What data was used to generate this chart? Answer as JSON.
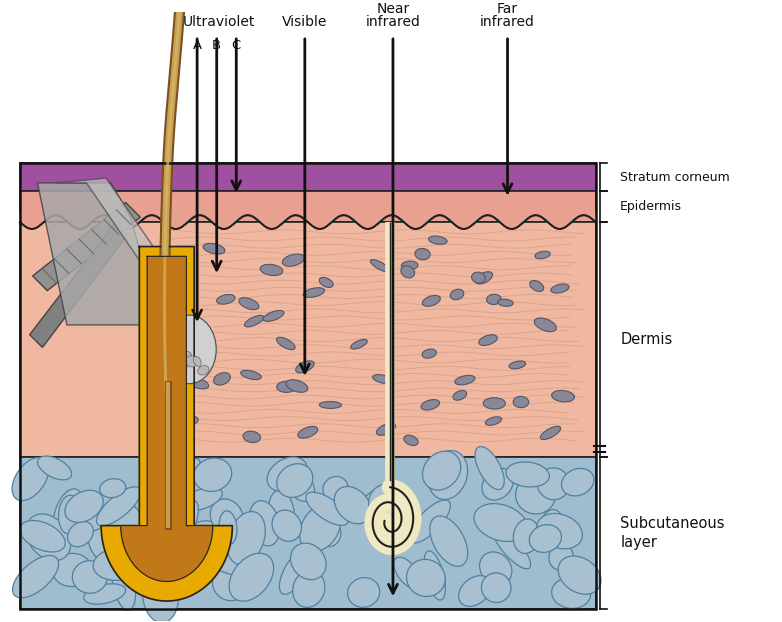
{
  "background_color": "#ffffff",
  "stratum_corneum_color": "#a050a0",
  "epidermis_color": "#e8a090",
  "dermis_color": "#f0b8a0",
  "subcutaneous_color": "#a0bdd0",
  "arrow_color": "#111111",
  "hair_outer_color": "#c8a060",
  "hair_inner_color": "#8B6030",
  "follicle_outer_color": "#e8a800",
  "follicle_inner_color": "#c07800",
  "sebaceous_color": "#d8d8d8",
  "sweat_duct_color": "#f0e8c0",
  "cell_color": "#888898",
  "stone_fill": "#a0bdd0",
  "stone_edge": "#6080a0",
  "fiber_color": "#c09070",
  "labels": {
    "ultraviolet": "Ultraviolet",
    "uv_a": "A",
    "uv_b": "B",
    "uv_c": "C",
    "visible": "Visible",
    "near_infrared_1": "Near",
    "near_infrared_2": "infrared",
    "far_infrared_1": "Far",
    "far_infrared_2": "infrared",
    "stratum_corneum": "Stratum corneum",
    "epidermis": "Epidermis",
    "dermis": "Dermis",
    "subcutaneous": "Subcutaneous\nlayer"
  }
}
